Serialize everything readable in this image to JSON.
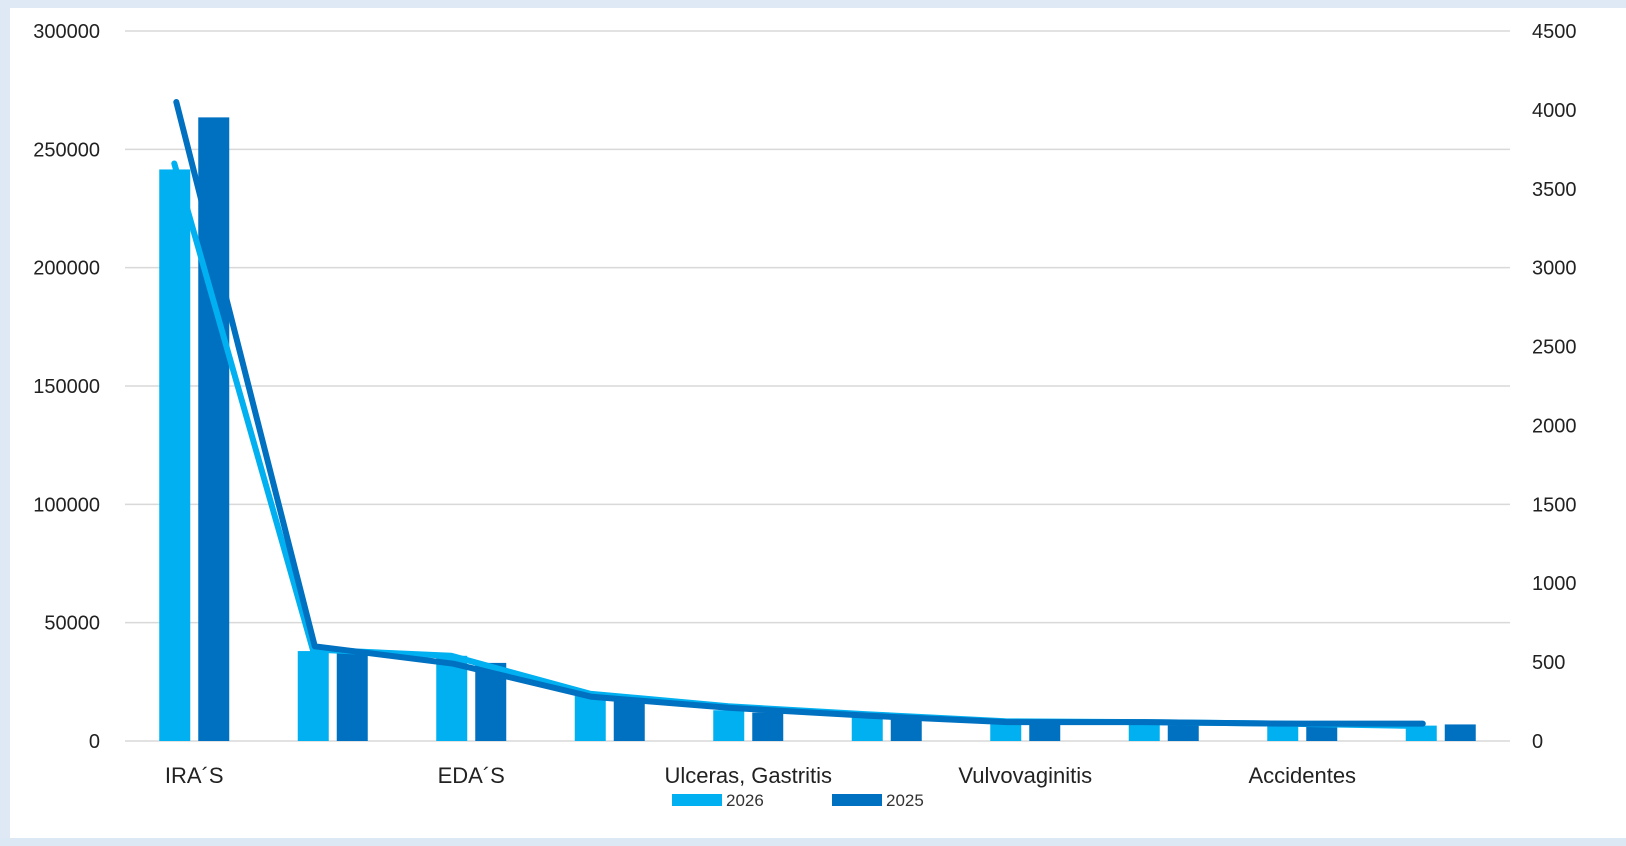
{
  "chart_data": {
    "type": "bar",
    "categories": [
      "IRA´S",
      "",
      "EDA´S",
      "",
      "Ulceras, Gastritis",
      "",
      "Vulvovaginitis",
      "",
      "Accidentes",
      ""
    ],
    "category_labels_shown": [
      "IRA´S",
      "EDA´S",
      "Ulceras, Gastritis",
      "Vulvovaginitis",
      "Accidentes"
    ],
    "series": [
      {
        "name": "2026",
        "kind": "bar",
        "axis": "left",
        "color": "#00b0f0",
        "values": [
          241500,
          38000,
          36000,
          19000,
          13000,
          11000,
          8000,
          7500,
          7000,
          6500
        ]
      },
      {
        "name": "2025",
        "kind": "bar",
        "axis": "left",
        "color": "#0070c0",
        "values": [
          263500,
          37000,
          33000,
          18000,
          12000,
          11000,
          8000,
          7500,
          7000,
          7000
        ]
      },
      {
        "kind": "line",
        "axis": "right",
        "color": "#00b0f0",
        "values": [
          3660,
          580,
          540,
          300,
          220,
          170,
          125,
          120,
          110,
          95
        ]
      },
      {
        "kind": "line",
        "axis": "right",
        "color": "#0070c0",
        "values": [
          4050,
          600,
          490,
          280,
          210,
          160,
          120,
          120,
          110,
          110
        ]
      }
    ],
    "y_left": {
      "min": 0,
      "max": 300000,
      "ticks": [
        0,
        50000,
        100000,
        150000,
        200000,
        250000,
        300000
      ]
    },
    "y_right": {
      "min": 0,
      "max": 4500,
      "ticks": [
        0,
        500,
        1000,
        1500,
        2000,
        2500,
        3000,
        3500,
        4000,
        4500
      ]
    },
    "grid": true,
    "legend": {
      "placement": "bottom",
      "entries": [
        "2026",
        "2025"
      ]
    }
  }
}
